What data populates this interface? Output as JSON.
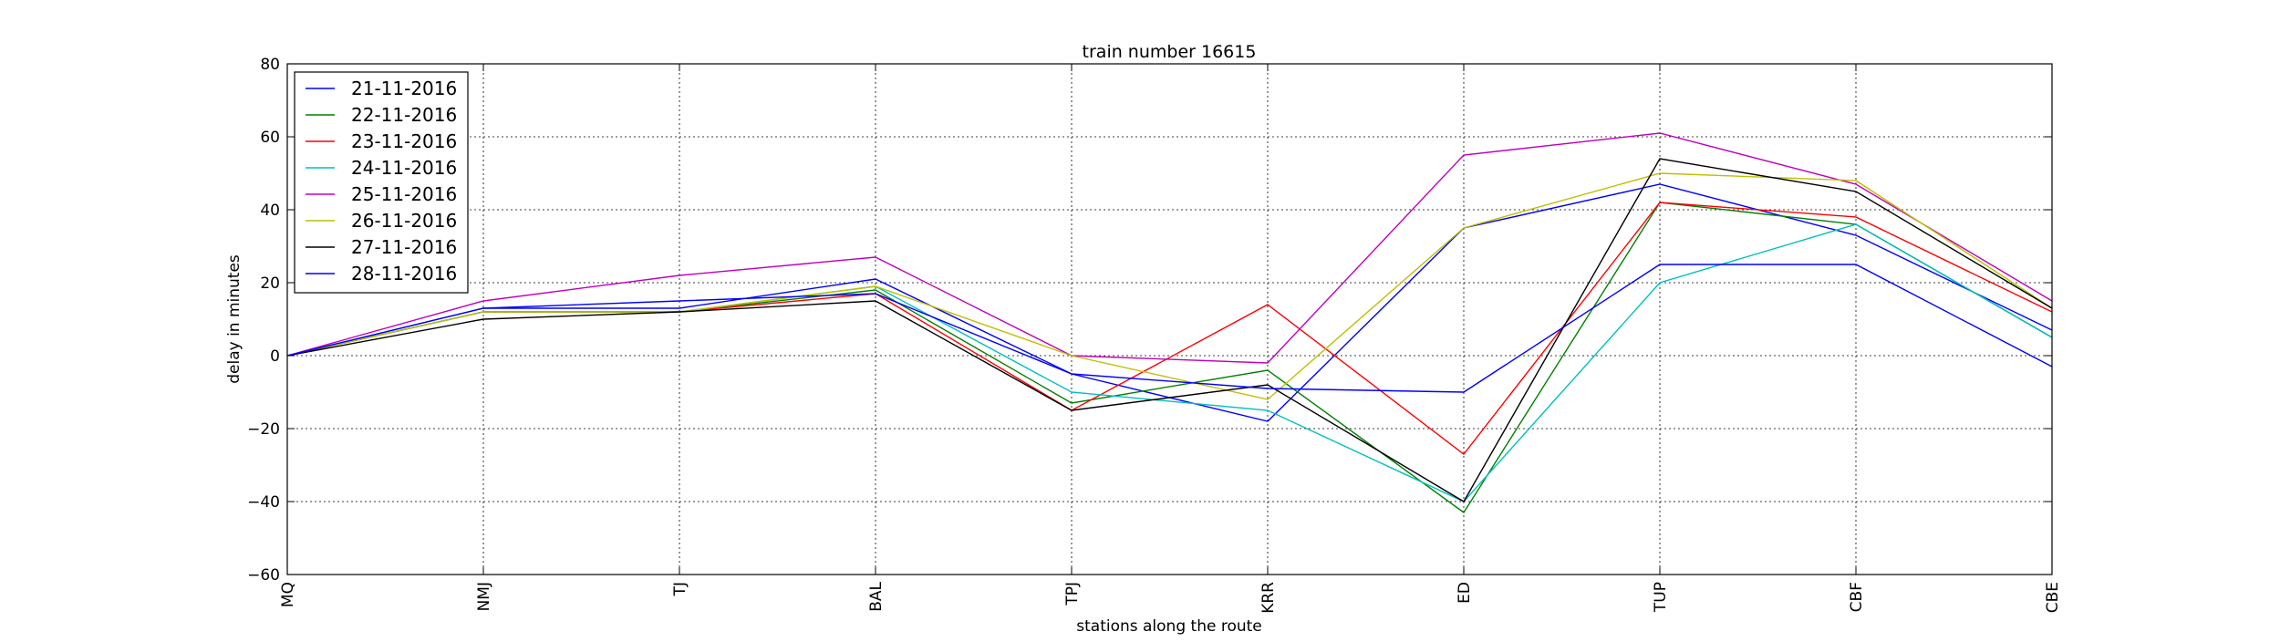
{
  "chart_data": {
    "type": "line",
    "title": "train number 16615",
    "xlabel": "stations along the route",
    "ylabel": "delay in minutes",
    "categories": [
      "MQ",
      "NMJ",
      "TJ",
      "BAL",
      "TPJ",
      "KRR",
      "ED",
      "TUP",
      "CBF",
      "CBE"
    ],
    "ylim": [
      -60,
      80
    ],
    "yticks": [
      -60,
      -40,
      -20,
      0,
      20,
      40,
      60,
      80
    ],
    "grid": true,
    "legend_position": "top-left",
    "series": [
      {
        "name": "21-11-2016",
        "color": "#0000ff",
        "values": [
          0,
          13,
          13,
          21,
          -5,
          -18,
          35,
          47,
          33,
          7
        ]
      },
      {
        "name": "22-11-2016",
        "color": "#008000",
        "values": [
          0,
          12,
          12,
          18,
          -13,
          -4,
          -43,
          42,
          36,
          5
        ]
      },
      {
        "name": "23-11-2016",
        "color": "#ff0000",
        "values": [
          0,
          12,
          12,
          17,
          -15,
          14,
          -27,
          42,
          38,
          12
        ]
      },
      {
        "name": "24-11-2016",
        "color": "#00bfbf",
        "values": [
          0,
          12,
          12,
          19,
          -10,
          -15,
          -40,
          20,
          36,
          5
        ]
      },
      {
        "name": "25-11-2016",
        "color": "#bf00bf",
        "values": [
          0,
          15,
          22,
          27,
          0,
          -2,
          55,
          61,
          47,
          15
        ]
      },
      {
        "name": "26-11-2016",
        "color": "#bfbf00",
        "values": [
          0,
          12,
          12,
          19,
          0,
          -12,
          35,
          50,
          48,
          13
        ]
      },
      {
        "name": "27-11-2016",
        "color": "#000000",
        "values": [
          0,
          10,
          12,
          15,
          -15,
          -8,
          -40,
          54,
          45,
          13
        ]
      },
      {
        "name": "28-11-2016",
        "color": "#0000ff",
        "values": [
          0,
          13,
          15,
          17,
          -5,
          -9,
          -10,
          25,
          25,
          -3
        ]
      }
    ]
  }
}
